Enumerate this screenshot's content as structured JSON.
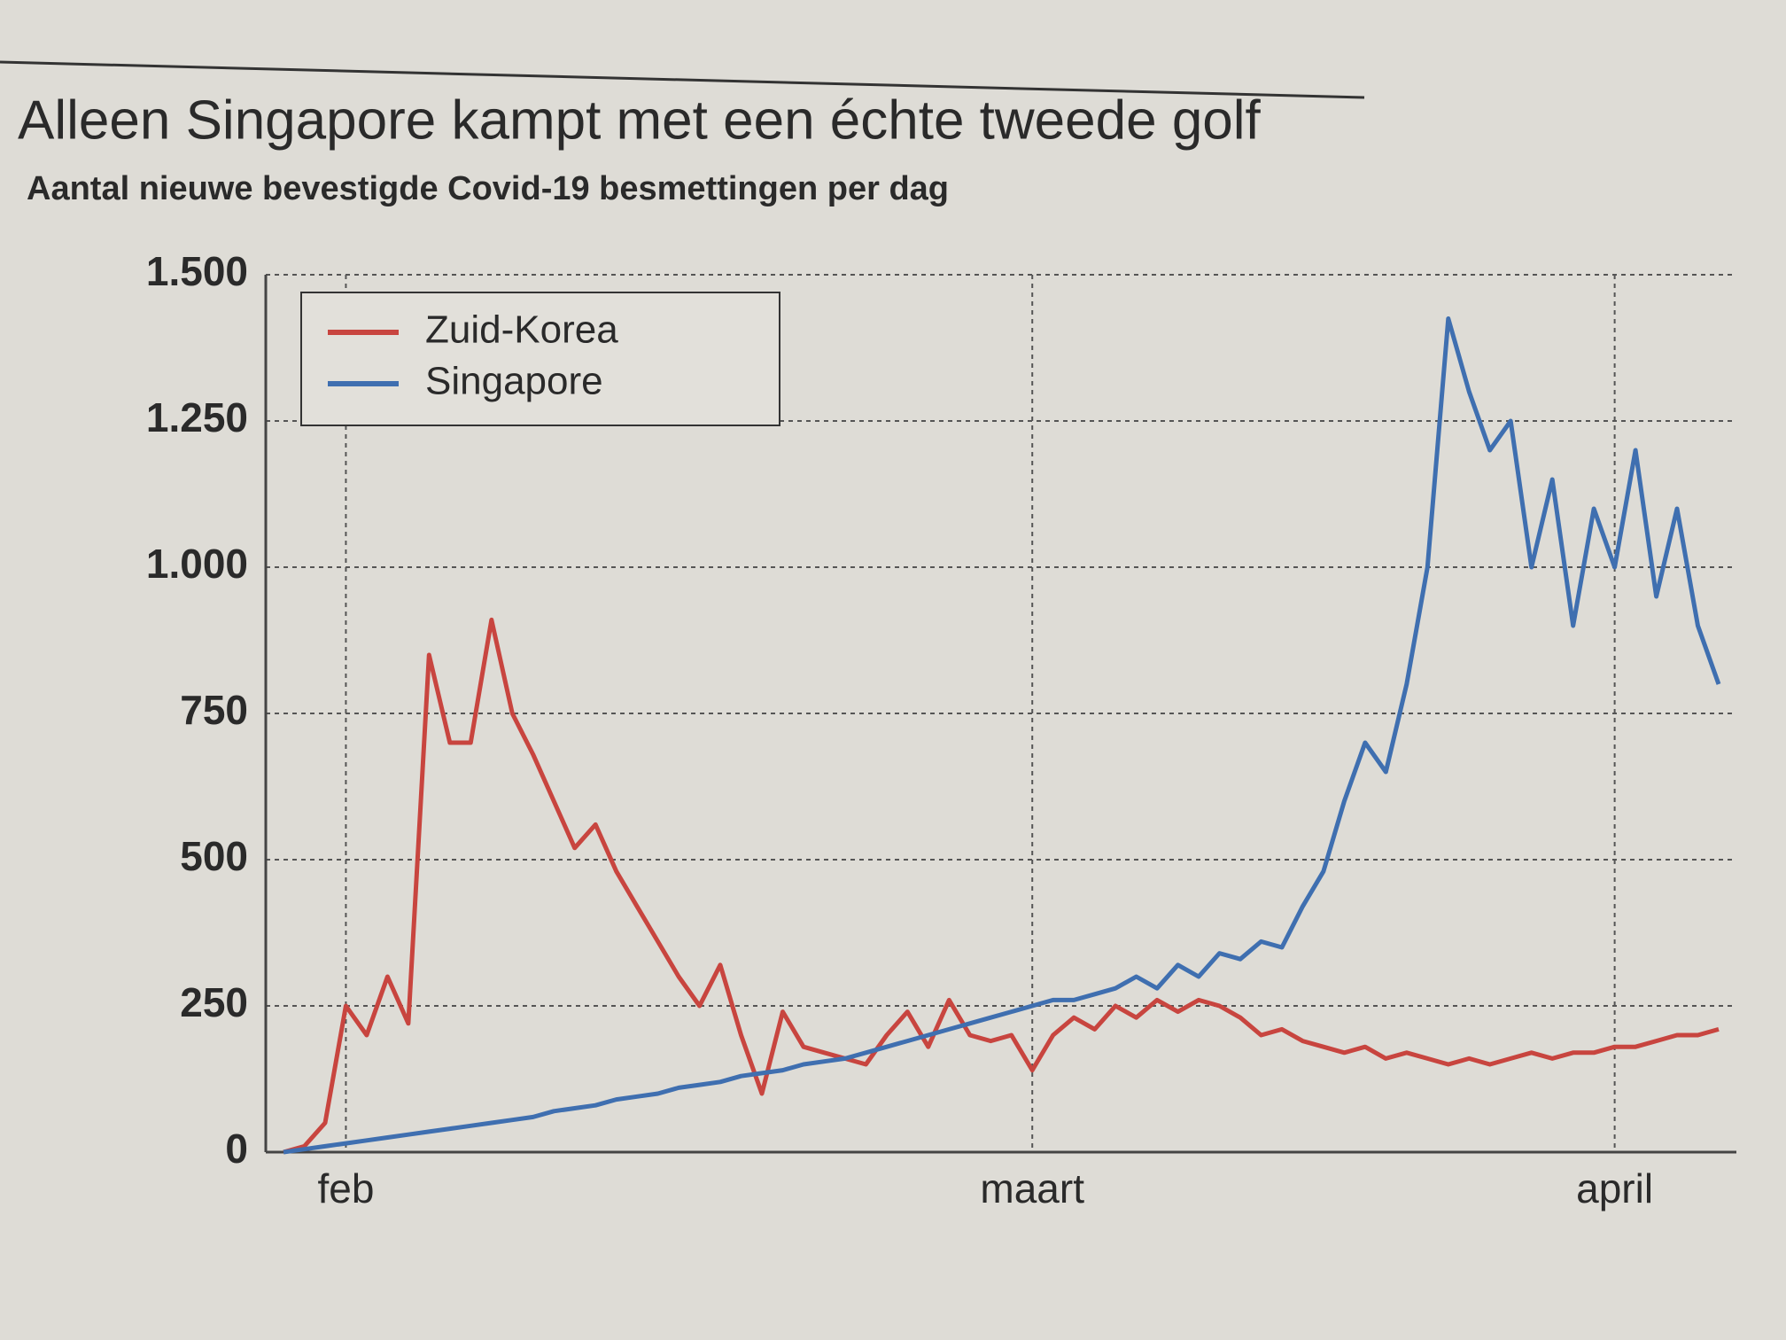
{
  "chart_data": {
    "type": "line",
    "title": "Alleen Singapore kampt met een échte tweede golf",
    "subtitle": "Aantal nieuwe bevestigde Covid-19 besmettingen per dag",
    "categories": [
      null,
      null,
      null,
      "feb",
      null,
      null,
      null,
      null,
      null,
      null,
      null,
      null,
      null,
      null,
      null,
      null,
      null,
      null,
      null,
      null,
      null,
      null,
      null,
      null,
      null,
      null,
      null,
      null,
      null,
      null,
      null,
      null,
      null,
      null,
      null,
      null,
      "maart",
      null,
      null,
      null,
      null,
      null,
      null,
      null,
      null,
      null,
      null,
      null,
      null,
      null,
      null,
      null,
      null,
      null,
      null,
      null,
      null,
      null,
      null,
      null,
      null,
      null,
      null,
      null,
      "april",
      null,
      null,
      null,
      null,
      null
    ],
    "series": [
      {
        "name": "Zuid-Korea",
        "color": "#c8453f",
        "values": [
          0,
          10,
          50,
          250,
          200,
          300,
          220,
          850,
          700,
          700,
          910,
          750,
          680,
          600,
          520,
          560,
          480,
          420,
          360,
          300,
          250,
          320,
          200,
          100,
          240,
          180,
          170,
          160,
          150,
          200,
          240,
          180,
          260,
          200,
          190,
          200,
          140,
          200,
          230,
          210,
          250,
          230,
          260,
          240,
          260,
          250,
          230,
          200,
          210,
          190,
          180,
          170,
          180,
          160,
          170,
          160,
          150,
          160,
          150,
          160,
          170,
          160,
          170,
          170,
          180,
          180,
          190,
          200,
          200,
          210
        ]
      },
      {
        "name": "Singapore",
        "color": "#3f6fb0",
        "values": [
          0,
          5,
          10,
          15,
          20,
          25,
          30,
          35,
          40,
          45,
          50,
          55,
          60,
          70,
          75,
          80,
          90,
          95,
          100,
          110,
          115,
          120,
          130,
          135,
          140,
          150,
          155,
          160,
          170,
          180,
          190,
          200,
          210,
          220,
          230,
          240,
          250,
          260,
          260,
          270,
          280,
          300,
          280,
          320,
          300,
          340,
          330,
          360,
          350,
          420,
          480,
          600,
          700,
          650,
          800,
          1000,
          1425,
          1300,
          1200,
          1250,
          1000,
          1150,
          900,
          1100,
          1000,
          1200,
          950,
          1100,
          900,
          800
        ]
      }
    ],
    "ylim": [
      0,
      1500
    ],
    "yticks": [
      0,
      250,
      500,
      750,
      {
        "value": 1000,
        "label": "1.000"
      },
      {
        "value": 1250,
        "label": "1.250"
      },
      {
        "value": 1500,
        "label": "1.500"
      }
    ],
    "grid": true,
    "legend": "upper left"
  }
}
